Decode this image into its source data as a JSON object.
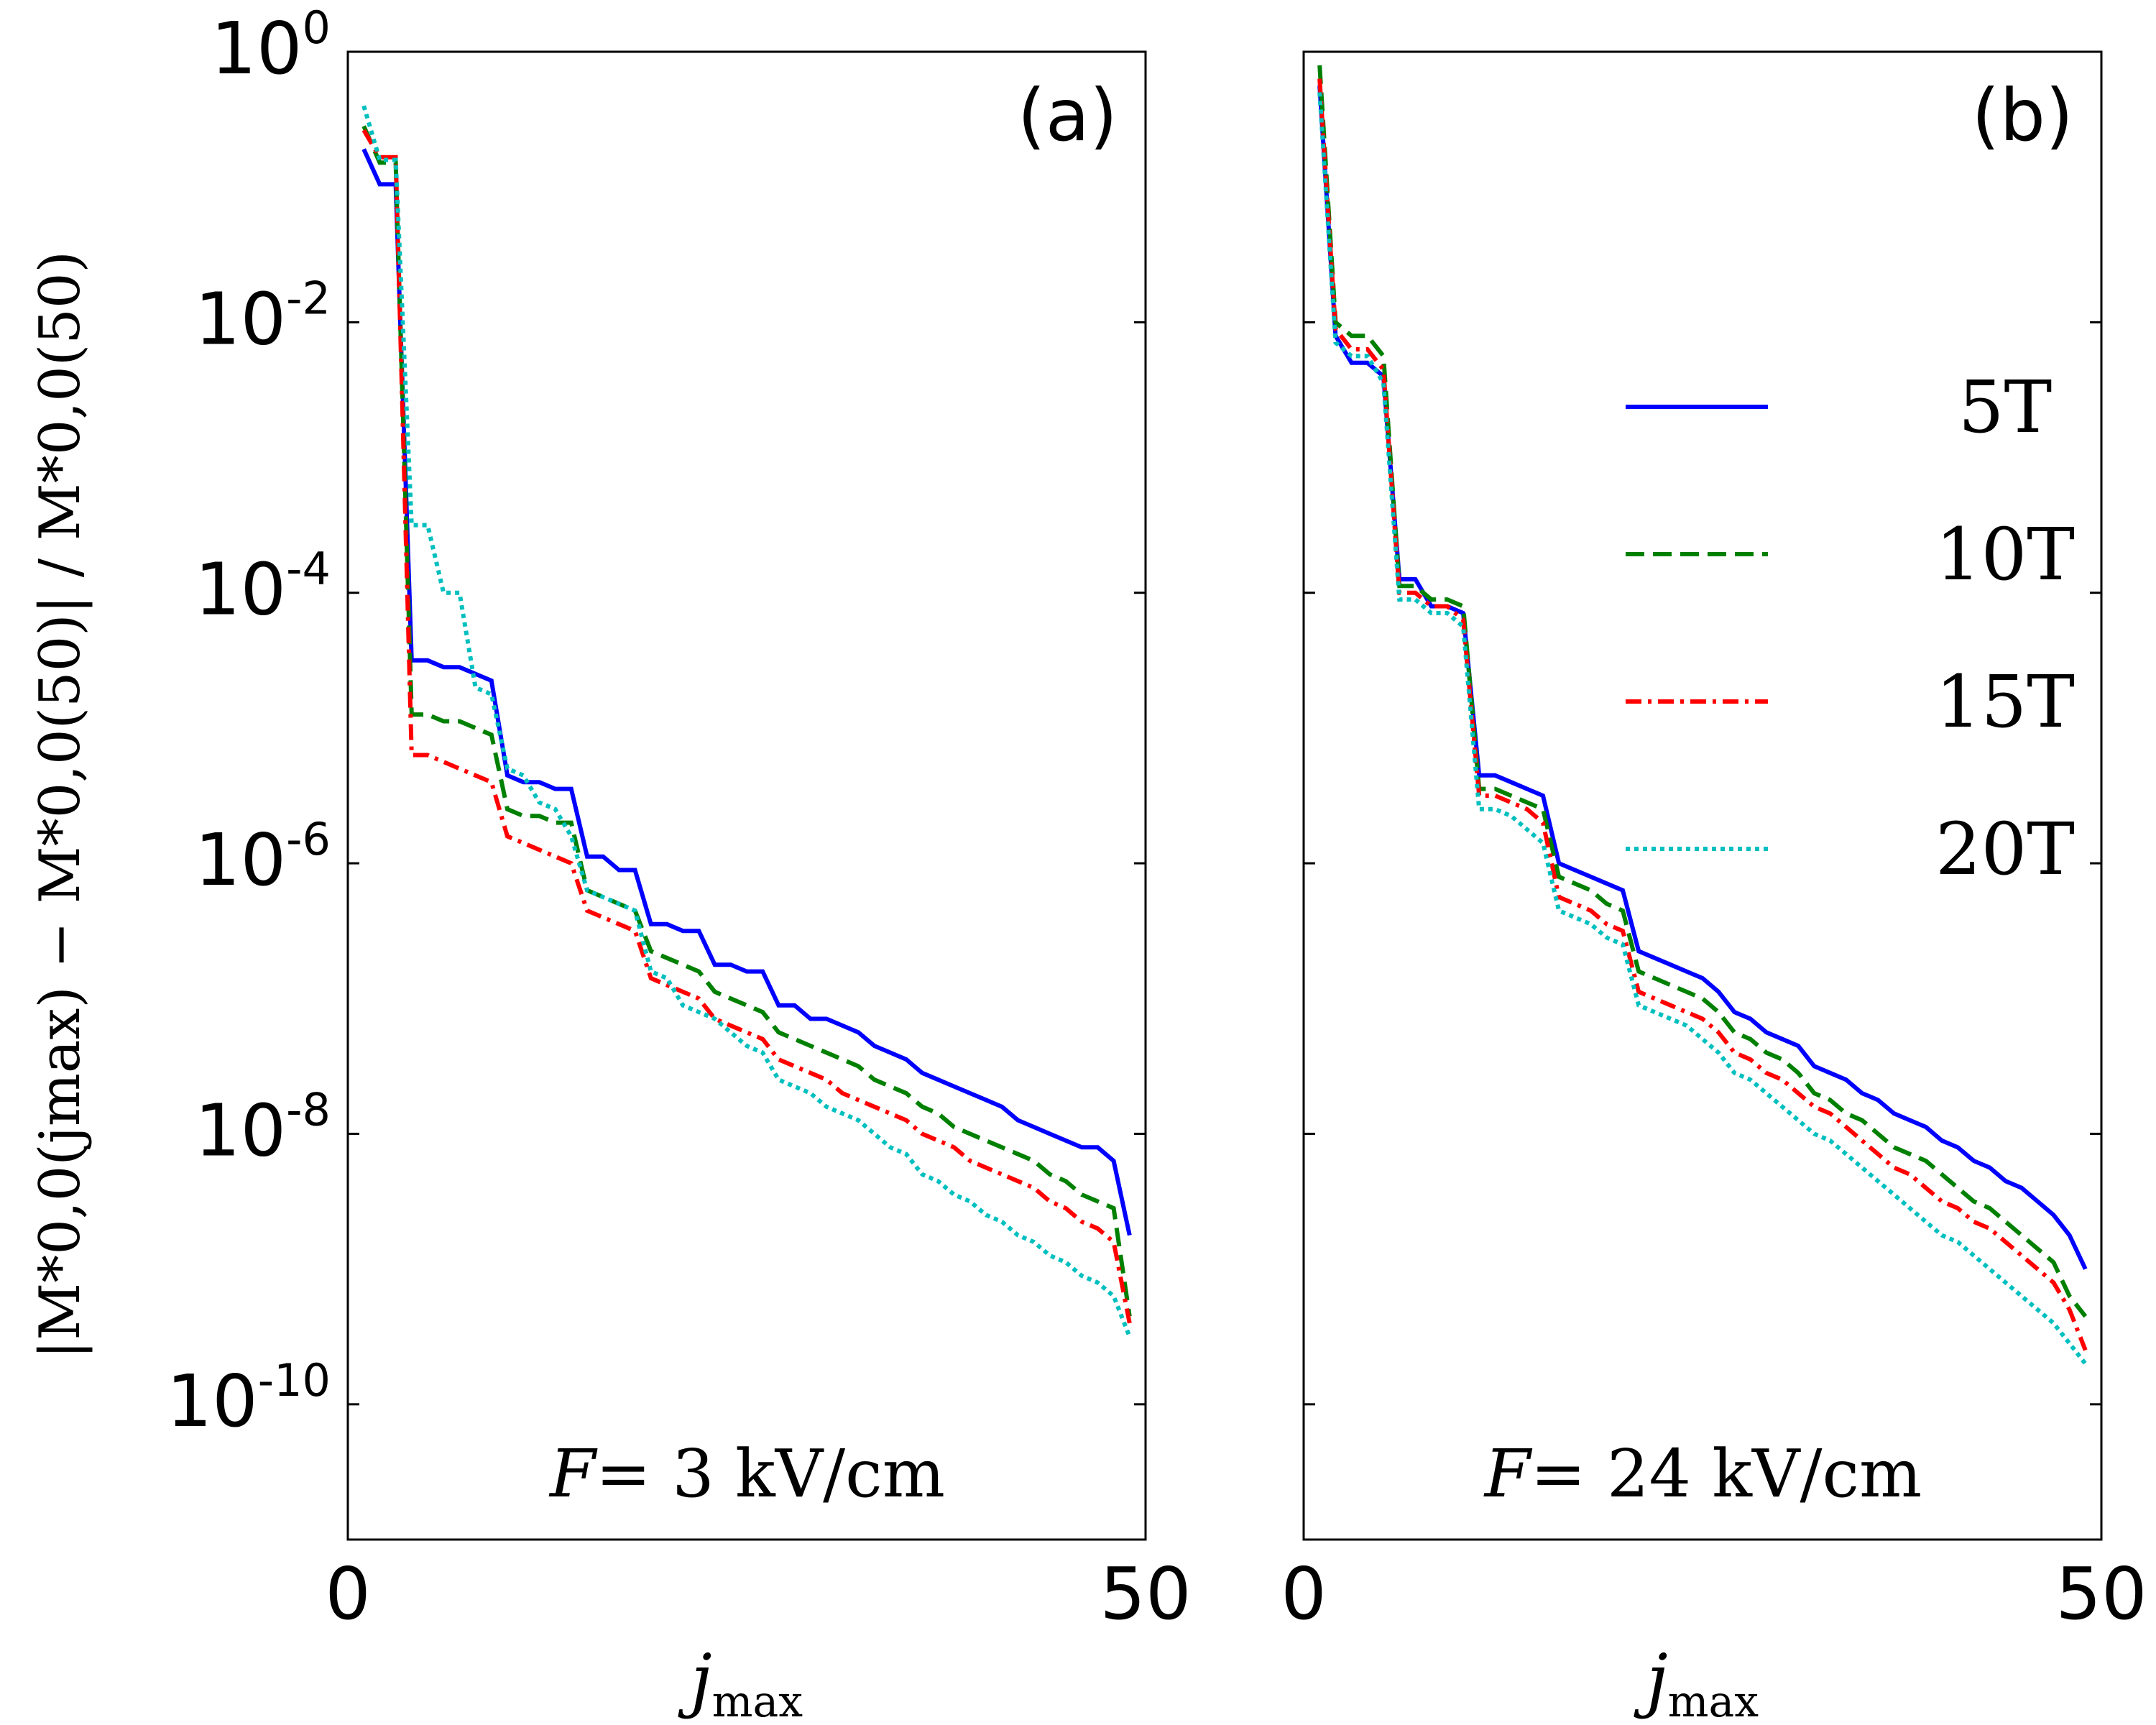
{
  "chart_data": [
    {
      "type": "line",
      "panel_label": "(a)",
      "annotation": {
        "italic": "F",
        "text": "= 3 kV/cm"
      },
      "xlabel": {
        "main": "j",
        "sub": "max"
      },
      "ylabel": "|M*0,0(jmax) − M*0,0(50)| / M*0,0(50)",
      "xlim": [
        0,
        50
      ],
      "ylim": [
        -11,
        0
      ],
      "yscale": "log10",
      "x_ticks": [
        "0",
        "50"
      ],
      "y_ticks": [
        {
          "base": "10",
          "exp": "0"
        },
        {
          "base": "10",
          "exp": "-2"
        },
        {
          "base": "10",
          "exp": "-4"
        },
        {
          "base": "10",
          "exp": "-6"
        },
        {
          "base": "10",
          "exp": "-8"
        },
        {
          "base": "10",
          "exp": "-10"
        }
      ],
      "series": [
        {
          "name": "5T",
          "color": "#0000ff",
          "dash": "solid",
          "x": [
            1,
            2,
            3,
            4,
            5,
            6,
            7,
            8,
            9,
            10,
            11,
            12,
            13,
            14,
            15,
            16,
            17,
            18,
            19,
            20,
            21,
            22,
            23,
            24,
            25,
            26,
            27,
            28,
            29,
            30,
            31,
            32,
            33,
            34,
            35,
            36,
            37,
            38,
            39,
            40,
            41,
            42,
            43,
            44,
            45,
            46,
            47,
            48,
            49
          ],
          "log10_y": [
            -0.72,
            -0.98,
            -0.98,
            -4.5,
            -4.5,
            -4.55,
            -4.55,
            -4.6,
            -4.65,
            -5.35,
            -5.4,
            -5.4,
            -5.45,
            -5.45,
            -5.95,
            -5.95,
            -6.05,
            -6.05,
            -6.45,
            -6.45,
            -6.5,
            -6.5,
            -6.75,
            -6.75,
            -6.8,
            -6.8,
            -7.05,
            -7.05,
            -7.15,
            -7.15,
            -7.2,
            -7.25,
            -7.35,
            -7.4,
            -7.45,
            -7.55,
            -7.6,
            -7.65,
            -7.7,
            -7.75,
            -7.8,
            -7.9,
            -7.95,
            -8.0,
            -8.05,
            -8.1,
            -8.1,
            -8.2,
            -8.75
          ]
        },
        {
          "name": "10T",
          "color": "#008000",
          "dash": "dashed",
          "x": [
            1,
            2,
            3,
            4,
            5,
            6,
            7,
            8,
            9,
            10,
            11,
            12,
            13,
            14,
            15,
            16,
            17,
            18,
            19,
            20,
            21,
            22,
            23,
            24,
            25,
            26,
            27,
            28,
            29,
            30,
            31,
            32,
            33,
            34,
            35,
            36,
            37,
            38,
            39,
            40,
            41,
            42,
            43,
            44,
            45,
            46,
            47,
            48,
            49
          ],
          "log10_y": [
            -0.55,
            -0.82,
            -0.82,
            -4.9,
            -4.9,
            -4.95,
            -4.95,
            -5.0,
            -5.05,
            -5.6,
            -5.65,
            -5.65,
            -5.7,
            -5.7,
            -6.2,
            -6.25,
            -6.3,
            -6.35,
            -6.65,
            -6.7,
            -6.75,
            -6.8,
            -6.95,
            -7.0,
            -7.05,
            -7.1,
            -7.25,
            -7.3,
            -7.35,
            -7.4,
            -7.45,
            -7.5,
            -7.6,
            -7.65,
            -7.7,
            -7.8,
            -7.85,
            -7.95,
            -8.0,
            -8.05,
            -8.1,
            -8.15,
            -8.2,
            -8.3,
            -8.35,
            -8.45,
            -8.5,
            -8.55,
            -9.35
          ]
        },
        {
          "name": "15T",
          "color": "#ff0000",
          "dash": "dashdot",
          "x": [
            1,
            2,
            3,
            4,
            5,
            6,
            7,
            8,
            9,
            10,
            11,
            12,
            13,
            14,
            15,
            16,
            17,
            18,
            19,
            20,
            21,
            22,
            23,
            24,
            25,
            26,
            27,
            28,
            29,
            30,
            31,
            32,
            33,
            34,
            35,
            36,
            37,
            38,
            39,
            40,
            41,
            42,
            43,
            44,
            45,
            46,
            47,
            48,
            49
          ],
          "log10_y": [
            -0.58,
            -0.78,
            -0.78,
            -5.2,
            -5.2,
            -5.25,
            -5.3,
            -5.35,
            -5.4,
            -5.8,
            -5.85,
            -5.9,
            -5.95,
            -6.0,
            -6.35,
            -6.4,
            -6.45,
            -6.5,
            -6.85,
            -6.9,
            -6.95,
            -7.0,
            -7.15,
            -7.2,
            -7.25,
            -7.3,
            -7.45,
            -7.5,
            -7.55,
            -7.6,
            -7.7,
            -7.75,
            -7.8,
            -7.85,
            -7.9,
            -8.0,
            -8.05,
            -8.1,
            -8.2,
            -8.25,
            -8.3,
            -8.35,
            -8.4,
            -8.5,
            -8.55,
            -8.65,
            -8.7,
            -8.8,
            -9.4
          ]
        },
        {
          "name": "20T",
          "color": "#00bfbf",
          "dash": "dotted",
          "x": [
            1,
            2,
            3,
            4,
            5,
            6,
            7,
            8,
            9,
            10,
            11,
            12,
            13,
            14,
            15,
            16,
            17,
            18,
            19,
            20,
            21,
            22,
            23,
            24,
            25,
            26,
            27,
            28,
            29,
            30,
            31,
            32,
            33,
            34,
            35,
            36,
            37,
            38,
            39,
            40,
            41,
            42,
            43,
            44,
            45,
            46,
            47,
            48,
            49
          ],
          "log10_y": [
            -0.4,
            -0.8,
            -0.8,
            -3.5,
            -3.5,
            -4.0,
            -4.0,
            -4.7,
            -4.75,
            -5.3,
            -5.35,
            -5.55,
            -5.6,
            -5.8,
            -6.2,
            -6.25,
            -6.3,
            -6.35,
            -6.8,
            -6.85,
            -7.05,
            -7.1,
            -7.15,
            -7.25,
            -7.35,
            -7.4,
            -7.6,
            -7.65,
            -7.7,
            -7.8,
            -7.85,
            -7.9,
            -8.0,
            -8.1,
            -8.15,
            -8.3,
            -8.35,
            -8.45,
            -8.5,
            -8.6,
            -8.65,
            -8.75,
            -8.8,
            -8.9,
            -8.95,
            -9.05,
            -9.1,
            -9.2,
            -9.5
          ]
        }
      ]
    },
    {
      "type": "line",
      "panel_label": "(b)",
      "annotation": {
        "italic": "F",
        "text": "= 24 kV/cm"
      },
      "xlabel": {
        "main": "j",
        "sub": "max"
      },
      "xlim": [
        0,
        50
      ],
      "ylim": [
        -11,
        0
      ],
      "yscale": "log10",
      "x_ticks": [
        "0",
        "50"
      ],
      "legend": {
        "location": "upper-right",
        "entries": [
          "5T",
          "10T",
          "15T",
          "20T"
        ]
      },
      "series": [
        {
          "name": "5T",
          "color": "#0000ff",
          "dash": "solid",
          "x": [
            1,
            2,
            3,
            4,
            5,
            6,
            7,
            8,
            9,
            10,
            11,
            12,
            13,
            14,
            15,
            16,
            17,
            18,
            19,
            20,
            21,
            22,
            23,
            24,
            25,
            26,
            27,
            28,
            29,
            30,
            31,
            32,
            33,
            34,
            35,
            36,
            37,
            38,
            39,
            40,
            41,
            42,
            43,
            44,
            45,
            46,
            47,
            48,
            49
          ],
          "log10_y": [
            -0.25,
            -2.1,
            -2.3,
            -2.3,
            -2.4,
            -3.9,
            -3.9,
            -4.1,
            -4.1,
            -4.15,
            -5.35,
            -5.35,
            -5.4,
            -5.45,
            -5.5,
            -6.0,
            -6.05,
            -6.1,
            -6.15,
            -6.2,
            -6.65,
            -6.7,
            -6.75,
            -6.8,
            -6.85,
            -6.95,
            -7.1,
            -7.15,
            -7.25,
            -7.3,
            -7.35,
            -7.5,
            -7.55,
            -7.6,
            -7.7,
            -7.75,
            -7.85,
            -7.9,
            -7.95,
            -8.05,
            -8.1,
            -8.2,
            -8.25,
            -8.35,
            -8.4,
            -8.5,
            -8.6,
            -8.75,
            -9.0
          ]
        },
        {
          "name": "10T",
          "color": "#008000",
          "dash": "dashed",
          "x": [
            1,
            2,
            3,
            4,
            5,
            6,
            7,
            8,
            9,
            10,
            11,
            12,
            13,
            14,
            15,
            16,
            17,
            18,
            19,
            20,
            21,
            22,
            23,
            24,
            25,
            26,
            27,
            28,
            29,
            30,
            31,
            32,
            33,
            34,
            35,
            36,
            37,
            38,
            39,
            40,
            41,
            42,
            43,
            44,
            45,
            46,
            47,
            48,
            49
          ],
          "log10_y": [
            -0.1,
            -2.0,
            -2.1,
            -2.1,
            -2.25,
            -3.95,
            -3.95,
            -4.05,
            -4.05,
            -4.1,
            -5.45,
            -5.45,
            -5.5,
            -5.55,
            -5.6,
            -6.1,
            -6.15,
            -6.2,
            -6.3,
            -6.35,
            -6.8,
            -6.85,
            -6.9,
            -6.95,
            -7.0,
            -7.1,
            -7.25,
            -7.3,
            -7.4,
            -7.45,
            -7.55,
            -7.7,
            -7.75,
            -7.85,
            -7.9,
            -8.0,
            -8.1,
            -8.15,
            -8.2,
            -8.3,
            -8.4,
            -8.5,
            -8.55,
            -8.65,
            -8.75,
            -8.85,
            -8.95,
            -9.2,
            -9.35
          ]
        },
        {
          "name": "15T",
          "color": "#ff0000",
          "dash": "dashdot",
          "x": [
            1,
            2,
            3,
            4,
            5,
            6,
            7,
            8,
            9,
            10,
            11,
            12,
            13,
            14,
            15,
            16,
            17,
            18,
            19,
            20,
            21,
            22,
            23,
            24,
            25,
            26,
            27,
            28,
            29,
            30,
            31,
            32,
            33,
            34,
            35,
            36,
            37,
            38,
            39,
            40,
            41,
            42,
            43,
            44,
            45,
            46,
            47,
            48,
            49
          ],
          "log10_y": [
            -0.2,
            -2.05,
            -2.2,
            -2.2,
            -2.35,
            -4.0,
            -4.0,
            -4.1,
            -4.1,
            -4.2,
            -5.5,
            -5.5,
            -5.55,
            -5.6,
            -5.7,
            -6.25,
            -6.3,
            -6.35,
            -6.45,
            -6.5,
            -6.95,
            -7.0,
            -7.05,
            -7.1,
            -7.15,
            -7.25,
            -7.4,
            -7.45,
            -7.55,
            -7.6,
            -7.7,
            -7.8,
            -7.85,
            -7.95,
            -8.05,
            -8.15,
            -8.25,
            -8.3,
            -8.4,
            -8.5,
            -8.55,
            -8.65,
            -8.7,
            -8.8,
            -8.9,
            -9.0,
            -9.1,
            -9.3,
            -9.6
          ]
        },
        {
          "name": "20T",
          "color": "#00bfbf",
          "dash": "dotted",
          "x": [
            1,
            2,
            3,
            4,
            5,
            6,
            7,
            8,
            9,
            10,
            11,
            12,
            13,
            14,
            15,
            16,
            17,
            18,
            19,
            20,
            21,
            22,
            23,
            24,
            25,
            26,
            27,
            28,
            29,
            30,
            31,
            32,
            33,
            34,
            35,
            36,
            37,
            38,
            39,
            40,
            41,
            42,
            43,
            44,
            45,
            46,
            47,
            48,
            49
          ],
          "log10_y": [
            -0.3,
            -2.15,
            -2.25,
            -2.25,
            -2.45,
            -4.05,
            -4.05,
            -4.15,
            -4.15,
            -4.25,
            -5.6,
            -5.6,
            -5.65,
            -5.75,
            -5.85,
            -6.35,
            -6.4,
            -6.45,
            -6.55,
            -6.6,
            -7.05,
            -7.1,
            -7.15,
            -7.2,
            -7.3,
            -7.4,
            -7.55,
            -7.6,
            -7.7,
            -7.8,
            -7.9,
            -8.0,
            -8.05,
            -8.15,
            -8.25,
            -8.35,
            -8.45,
            -8.55,
            -8.65,
            -8.75,
            -8.8,
            -8.9,
            -9.0,
            -9.1,
            -9.2,
            -9.3,
            -9.4,
            -9.55,
            -9.7
          ]
        }
      ]
    }
  ]
}
